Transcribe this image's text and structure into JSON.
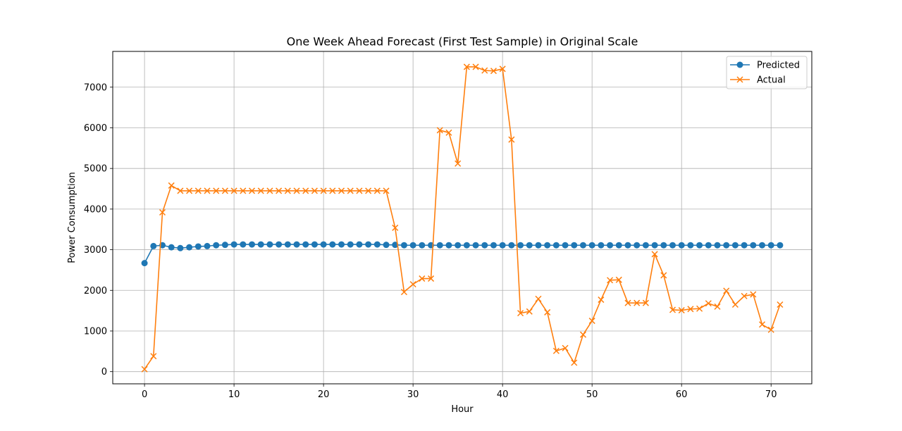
{
  "chart_data": {
    "type": "line",
    "title": "One Week Ahead Forecast (First Test Sample) in Original Scale",
    "xlabel": "Hour",
    "ylabel": "Power Consumption",
    "xlim": [
      -3.55,
      74.55
    ],
    "ylim": [
      -300,
      7880
    ],
    "xticks": [
      0,
      10,
      20,
      30,
      40,
      50,
      60,
      70
    ],
    "yticks": [
      0,
      1000,
      2000,
      3000,
      4000,
      5000,
      6000,
      7000
    ],
    "grid": true,
    "legend_position": "top-right",
    "x": [
      0,
      1,
      2,
      3,
      4,
      5,
      6,
      7,
      8,
      9,
      10,
      11,
      12,
      13,
      14,
      15,
      16,
      17,
      18,
      19,
      20,
      21,
      22,
      23,
      24,
      25,
      26,
      27,
      28,
      29,
      30,
      31,
      32,
      33,
      34,
      35,
      36,
      37,
      38,
      39,
      40,
      41,
      42,
      43,
      44,
      45,
      46,
      47,
      48,
      49,
      50,
      51,
      52,
      53,
      54,
      55,
      56,
      57,
      58,
      59,
      60,
      61,
      62,
      63,
      64,
      65,
      66,
      67,
      68,
      69,
      70,
      71
    ],
    "series": [
      {
        "name": "Predicted",
        "color": "#1f77b4",
        "marker": "circle",
        "values": [
          2670,
          3090,
          3110,
          3060,
          3040,
          3060,
          3080,
          3090,
          3110,
          3120,
          3130,
          3130,
          3130,
          3130,
          3130,
          3130,
          3130,
          3130,
          3130,
          3130,
          3130,
          3130,
          3130,
          3130,
          3130,
          3130,
          3130,
          3120,
          3120,
          3110,
          3110,
          3110,
          3110,
          3110,
          3110,
          3110,
          3110,
          3110,
          3110,
          3110,
          3110,
          3110,
          3110,
          3110,
          3110,
          3110,
          3110,
          3110,
          3110,
          3110,
          3110,
          3110,
          3110,
          3110,
          3110,
          3110,
          3110,
          3110,
          3110,
          3110,
          3110,
          3110,
          3110,
          3110,
          3110,
          3110,
          3110,
          3110,
          3110,
          3110,
          3110,
          3110
        ]
      },
      {
        "name": "Actual",
        "color": "#ff7f0e",
        "marker": "x",
        "values": [
          60,
          380,
          3920,
          4580,
          4450,
          4450,
          4450,
          4450,
          4450,
          4450,
          4450,
          4450,
          4450,
          4450,
          4450,
          4450,
          4450,
          4450,
          4450,
          4450,
          4450,
          4450,
          4450,
          4450,
          4450,
          4450,
          4450,
          4450,
          3540,
          1960,
          2150,
          2290,
          2290,
          5940,
          5880,
          5120,
          7500,
          7500,
          7410,
          7400,
          7450,
          5710,
          1440,
          1480,
          1790,
          1460,
          510,
          580,
          220,
          910,
          1250,
          1770,
          2250,
          2260,
          1690,
          1690,
          1690,
          2890,
          2370,
          1520,
          1510,
          1540,
          1550,
          1680,
          1600,
          1990,
          1650,
          1860,
          1900,
          1160,
          1030,
          1650
        ]
      }
    ]
  }
}
